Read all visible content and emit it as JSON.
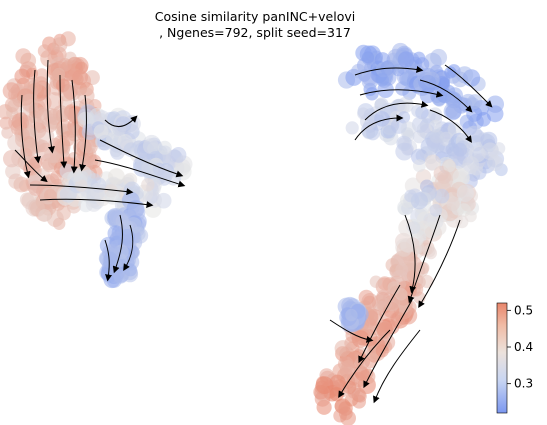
{
  "chart_data": {
    "type": "scatter",
    "title_line1": "Cosine similarity panINC+velovi",
    "title_line2": ", Ngenes=792, split seed=317",
    "xlabel": "",
    "ylabel": "",
    "grid": false,
    "axes_visible": false,
    "colorbar": {
      "cmap": "coolwarm",
      "range": [
        0.22,
        0.52
      ],
      "ticks": [
        0.3,
        0.4,
        0.5
      ],
      "tick_labels": [
        "0.3",
        "0.4",
        "0.5"
      ],
      "low_color": "#6f8ff0",
      "mid_color": "#e6e6e6",
      "high_color": "#e7836a"
    },
    "overlay": "velocity streamlines with arrowheads"
  }
}
